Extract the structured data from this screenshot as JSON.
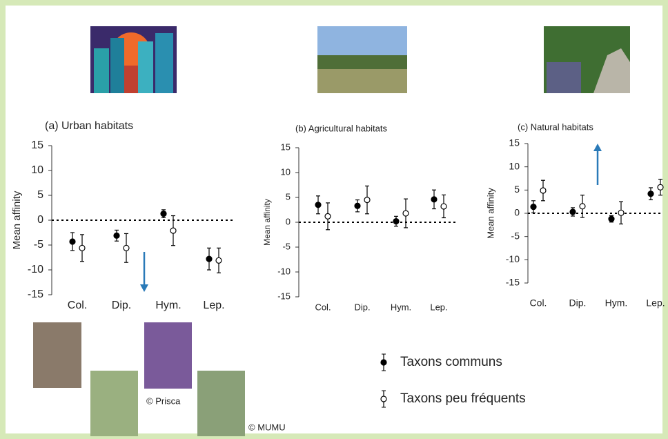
{
  "chart_data": [
    {
      "type": "errorpoint",
      "title": "(a) Urban habitats",
      "y_label": "Mean affinity",
      "categories": [
        "Col.",
        "Dip.",
        "Hym.",
        "Lep."
      ],
      "ylim": [
        -15,
        15
      ],
      "yticks": [
        -15,
        -10,
        -5,
        0,
        5,
        10,
        15
      ],
      "hline": 0,
      "series": [
        {
          "name": "Taxons communs",
          "color": "#000000",
          "filled": true,
          "values": [
            -4.3,
            -3.1,
            1.3,
            -7.8
          ],
          "errors": [
            1.8,
            1.1,
            0.8,
            2.2
          ]
        },
        {
          "name": "Taxons peu fréquents",
          "color": "#000000",
          "filled": false,
          "values": [
            -5.6,
            -5.6,
            -2.1,
            -8.1
          ],
          "errors": [
            2.7,
            2.9,
            3.0,
            2.5
          ]
        }
      ]
    },
    {
      "type": "errorpoint",
      "title": "(b) Agricultural habitats",
      "y_label": "Mean affinity",
      "categories": [
        "Col.",
        "Dip.",
        "Hym.",
        "Lep."
      ],
      "ylim": [
        -15,
        15
      ],
      "yticks": [
        -15,
        -10,
        -5,
        0,
        5,
        10,
        15
      ],
      "hline": 0,
      "series": [
        {
          "color": "#000000",
          "filled": true,
          "values": [
            3.5,
            3.3,
            0.2,
            4.6
          ],
          "errors": [
            1.8,
            1.2,
            1.0,
            1.9
          ]
        },
        {
          "color": "#000000",
          "filled": false,
          "values": [
            1.2,
            4.5,
            1.8,
            3.2
          ],
          "errors": [
            2.7,
            2.8,
            2.9,
            2.3
          ]
        }
      ]
    },
    {
      "type": "errorpoint",
      "title": "(c) Natural habitats",
      "y_label": "Mean affinity",
      "categories": [
        "Col.",
        "Dip.",
        "Hym.",
        "Lep."
      ],
      "ylim": [
        -15,
        15
      ],
      "yticks": [
        -15,
        -10,
        -5,
        0,
        5,
        10,
        15
      ],
      "hline": 0,
      "series": [
        {
          "color": "#000000",
          "filled": true,
          "values": [
            1.4,
            0.3,
            -1.2,
            4.2
          ],
          "errors": [
            1.3,
            0.9,
            0.7,
            1.3
          ]
        },
        {
          "color": "#000000",
          "filled": false,
          "values": [
            4.9,
            1.5,
            0.1,
            5.6
          ],
          "errors": [
            2.2,
            2.4,
            2.4,
            1.7
          ]
        }
      ]
    }
  ],
  "credits": [
    "© Prisca",
    "© MUMU"
  ]
}
